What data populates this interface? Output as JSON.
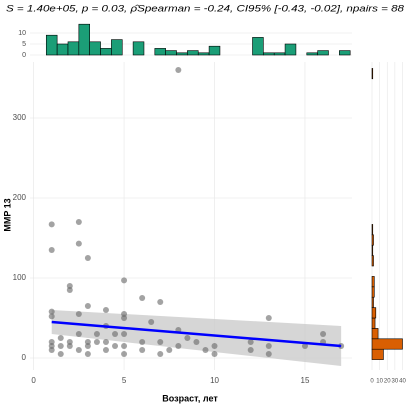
{
  "chart_data": [
    {
      "type": "scatter",
      "title": "S = 1.40e+05, p = 0.03, ρ̂Spearman = -0.24, CI95% [-0.43, -0.02], npairs = 88",
      "x_label": "Возраст, лет",
      "y_label": "MMP 13",
      "x": [
        1,
        1,
        1,
        1,
        1,
        1,
        1,
        1.5,
        1.5,
        1.5,
        2,
        2,
        2,
        2,
        2.5,
        2.5,
        2.5,
        2.5,
        2.5,
        3,
        3,
        3,
        3,
        3,
        3.5,
        3.5,
        4,
        4,
        4,
        4,
        4.5,
        4.5,
        5,
        5,
        5,
        5,
        5,
        5,
        6,
        6,
        6,
        6.5,
        7,
        7,
        7,
        7.5,
        8,
        8,
        8,
        8.5,
        9,
        9.5,
        10,
        10,
        12,
        12,
        13,
        13,
        13,
        15,
        16,
        16,
        17
      ],
      "values": [
        167,
        135,
        58,
        52,
        20,
        15,
        10,
        25,
        15,
        5,
        90,
        85,
        20,
        15,
        170,
        143,
        55,
        30,
        10,
        125,
        65,
        20,
        15,
        5,
        30,
        20,
        60,
        40,
        20,
        10,
        30,
        15,
        97,
        55,
        50,
        30,
        15,
        5,
        75,
        20,
        10,
        45,
        70,
        20,
        5,
        10,
        360,
        35,
        15,
        25,
        20,
        10,
        15,
        5,
        20,
        10,
        50,
        15,
        5,
        15,
        30,
        20,
        15
      ],
      "color": "#666666",
      "trend": {
        "x": [
          1,
          17
        ],
        "values": [
          45,
          15
        ],
        "lower": [
          30,
          -10
        ],
        "upper": [
          60,
          40
        ],
        "color": "#0000ff",
        "band_color": "#cccccc"
      },
      "xlim": [
        -0.2,
        17.6
      ],
      "ylim": [
        -15,
        370
      ],
      "xticks": [
        0,
        5,
        10,
        15
      ],
      "yticks": [
        0,
        100,
        200,
        300
      ],
      "grid": true
    },
    {
      "type": "histogram",
      "orientation": "vertical",
      "color": "#1b9e77",
      "bins": [
        0.7,
        1.3,
        1.9,
        2.5,
        3.1,
        3.7,
        4.3,
        4.9,
        5.5,
        6.1,
        6.7,
        7.3,
        7.9,
        8.5,
        9.1,
        9.7,
        10.3,
        10.9,
        11.5,
        12.1,
        12.7,
        13.3,
        13.9,
        14.5,
        15.1,
        15.7,
        16.3,
        16.9,
        17.5
      ],
      "values": [
        9,
        5,
        6,
        14,
        6,
        3,
        7,
        0,
        6,
        0,
        3,
        2,
        1,
        2,
        1,
        4,
        0,
        0,
        0,
        8,
        1,
        1,
        5,
        0,
        1,
        2,
        0,
        2
      ],
      "xlim": [
        -0.2,
        17.6
      ],
      "ylim": [
        0,
        15
      ],
      "yticks": [
        0,
        5,
        10
      ],
      "grid": true
    },
    {
      "type": "histogram",
      "orientation": "horizontal",
      "color": "#d95f02",
      "bins": [
        -2,
        11,
        24,
        37,
        50,
        63,
        76,
        89,
        102,
        115,
        128,
        141,
        154,
        167,
        180,
        193,
        206,
        219,
        232,
        245,
        258,
        271,
        284,
        297,
        310,
        323,
        336,
        349,
        362
      ],
      "values": [
        15,
        40,
        8,
        4,
        5,
        2,
        3,
        3,
        0,
        2,
        1,
        2,
        1,
        0,
        0,
        0,
        0,
        0,
        0,
        0,
        0,
        0,
        0,
        0,
        0,
        0,
        0,
        1
      ],
      "xlim": [
        0,
        42
      ],
      "ylim": [
        -15,
        370
      ],
      "xticks": [
        0,
        10,
        20,
        30,
        40
      ],
      "grid": true
    }
  ]
}
